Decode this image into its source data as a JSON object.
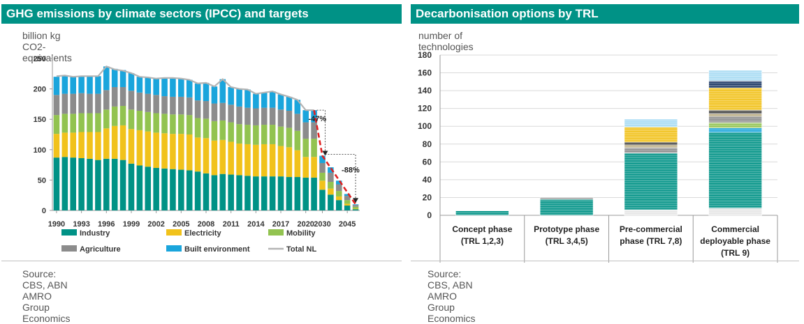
{
  "left": {
    "title": "GHG emissions by climate sectors (IPCC) and targets",
    "unit_label": "billion kg CO2-equivalents",
    "source": "Source: CBS, ABN AMRO Group Economics"
  },
  "right": {
    "title": "Decarbonisation options by TRL",
    "unit_label": "number of technologies",
    "source": "Source: CBS, ABN AMRO Group Economics"
  },
  "colors": {
    "teal": "#009286",
    "yellow": "#f1c21b",
    "green": "#92c350",
    "gray": "#8c8c8c",
    "blue": "#1aa5dc",
    "total": "#b4b4b4",
    "target_line": "#e02020"
  },
  "chart_data": [
    {
      "type": "bar",
      "stacked": true,
      "title": "GHG emissions by climate sectors (IPCC) and targets",
      "ylabel": "billion kg CO2-equivalents",
      "ylim": [
        0,
        250
      ],
      "yticks": [
        0,
        50,
        100,
        150,
        200,
        250
      ],
      "categories": [
        "1990",
        "1991",
        "1992",
        "1993",
        "1994",
        "1995",
        "1996",
        "1997",
        "1998",
        "1999",
        "2000",
        "2001",
        "2002",
        "2003",
        "2004",
        "2005",
        "2006",
        "2007",
        "2008",
        "2009",
        "2010",
        "2011",
        "2012",
        "2013",
        "2014",
        "2015",
        "2016",
        "2017",
        "2018",
        "2019",
        "2020",
        "2021",
        "2030",
        "2035",
        "2040",
        "2045",
        "2050"
      ],
      "xtick_labels": [
        "1990",
        "1993",
        "1996",
        "1999",
        "2002",
        "2005",
        "2008",
        "2011",
        "2014",
        "2017",
        "2020",
        "2030",
        "2045"
      ],
      "series": [
        {
          "name": "Industry",
          "color": "teal",
          "values": [
            87,
            88,
            87,
            86,
            85,
            83,
            85,
            85,
            83,
            77,
            74,
            72,
            70,
            69,
            68,
            67,
            66,
            64,
            61,
            58,
            60,
            59,
            58,
            57,
            56,
            56,
            56,
            56,
            55,
            55,
            54,
            54,
            34,
            26,
            17,
            8,
            2
          ]
        },
        {
          "name": "Electricity",
          "color": "yellow",
          "values": [
            39,
            40,
            41,
            43,
            44,
            46,
            50,
            54,
            57,
            57,
            58,
            58,
            58,
            58,
            58,
            59,
            59,
            56,
            58,
            57,
            56,
            54,
            52,
            52,
            52,
            53,
            53,
            50,
            49,
            44,
            34,
            34,
            15,
            10,
            6,
            3,
            1
          ]
        },
        {
          "name": "Mobility",
          "color": "green",
          "values": [
            31,
            31,
            31,
            31,
            31,
            31,
            31,
            32,
            32,
            32,
            32,
            32,
            32,
            32,
            32,
            32,
            32,
            32,
            32,
            32,
            32,
            32,
            32,
            32,
            32,
            32,
            32,
            32,
            32,
            32,
            30,
            30,
            13,
            11,
            9,
            6,
            3
          ]
        },
        {
          "name": "Agriculture",
          "color": "gray",
          "values": [
            33,
            33,
            33,
            33,
            32,
            32,
            32,
            32,
            31,
            31,
            30,
            30,
            30,
            29,
            29,
            29,
            29,
            29,
            29,
            29,
            29,
            29,
            29,
            28,
            28,
            28,
            28,
            28,
            28,
            28,
            27,
            27,
            16,
            15,
            11,
            7,
            3
          ]
        },
        {
          "name": "Built environment",
          "color": "blue",
          "values": [
            30,
            29,
            28,
            28,
            29,
            29,
            39,
            30,
            28,
            29,
            26,
            27,
            27,
            30,
            31,
            30,
            29,
            28,
            30,
            28,
            39,
            29,
            29,
            30,
            24,
            25,
            27,
            25,
            23,
            23,
            20,
            20,
            12,
            9,
            6,
            3,
            1
          ]
        }
      ],
      "total": {
        "name": "Total NL",
        "color": "total",
        "values": [
          221,
          222,
          220,
          221,
          221,
          221,
          237,
          232,
          230,
          226,
          220,
          219,
          217,
          218,
          218,
          217,
          215,
          209,
          210,
          204,
          216,
          203,
          200,
          199,
          192,
          194,
          196,
          191,
          187,
          182,
          165,
          165
        ]
      },
      "annotations": [
        {
          "text": "-47%",
          "from": "2021",
          "to": "2030"
        },
        {
          "text": "-88%",
          "from": "2030",
          "to": "2050"
        }
      ],
      "legend": [
        "Industry",
        "Electricity",
        "Mobility",
        "Agriculture",
        "Built environment",
        "Total NL"
      ],
      "legend_placement": "bottom",
      "grid": false
    },
    {
      "type": "bar",
      "stacked": true,
      "title": "Decarbonisation options by TRL",
      "ylabel": "number of technologies",
      "ylim": [
        0,
        180
      ],
      "yticks": [
        0,
        20,
        40,
        60,
        80,
        100,
        120,
        140,
        160,
        180
      ],
      "categories": [
        "Concept phase (TRL 1,2,3)",
        "Prototype phase (TRL 3,4,5)",
        "Pre-commercial phase (TRL 7,8)",
        "Commercial deployable phase (TRL 9)"
      ],
      "category_lines": [
        [
          "Concept phase",
          "(TRL 1,2,3)"
        ],
        [
          "Prototype phase",
          "(TRL 3,4,5)"
        ],
        [
          "Pre-commercial",
          "phase (TRL 7,8)"
        ],
        [
          "Commercial",
          "deployable phase",
          "(TRL 9)"
        ]
      ],
      "series": [
        {
          "color": "#e6e6e6",
          "values": [
            0,
            0,
            6,
            8
          ]
        },
        {
          "color": "#009286",
          "values": [
            5,
            18,
            64,
            85
          ]
        },
        {
          "color": "#1aa5dc",
          "values": [
            0,
            0,
            0,
            5
          ]
        },
        {
          "color": "#92c350",
          "values": [
            0,
            0,
            0,
            6
          ]
        },
        {
          "color": "#8c8c8c",
          "values": [
            0,
            2,
            6,
            7
          ]
        },
        {
          "color": "#b4a57a",
          "values": [
            0,
            0,
            3,
            3
          ]
        },
        {
          "color": "#404040",
          "values": [
            0,
            0,
            3,
            4
          ]
        },
        {
          "color": "#f1c21b",
          "values": [
            0,
            0,
            17,
            25
          ]
        },
        {
          "color": "#1f3b66",
          "values": [
            0,
            0,
            0,
            8
          ]
        },
        {
          "color": "#a9dcf4",
          "values": [
            0,
            0,
            9,
            12
          ]
        }
      ],
      "totals": [
        5,
        20,
        108,
        163
      ],
      "grid": true
    }
  ]
}
